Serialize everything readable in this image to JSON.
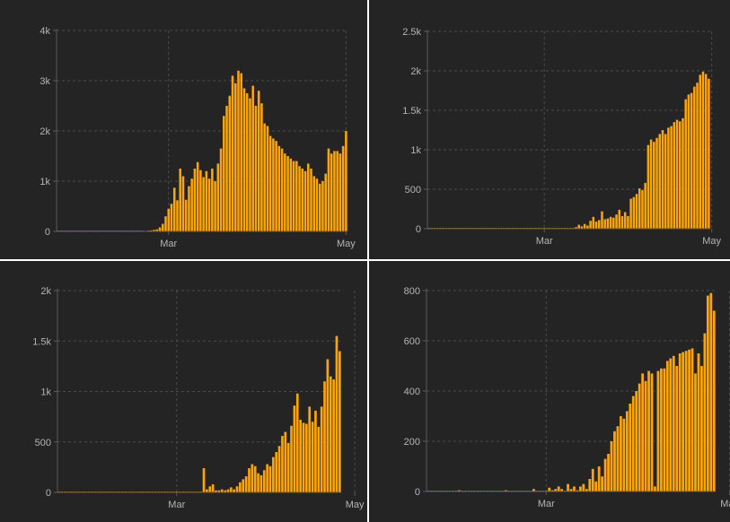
{
  "colors": {
    "bar": "#ffa500",
    "background": "#242424",
    "grid": "#4a4a4a",
    "tick": "#b4b4b4"
  },
  "chart_data": [
    {
      "type": "bar",
      "grid": true,
      "ylim": [
        0,
        4000
      ],
      "y_ticks": [
        {
          "v": 0,
          "label": "0"
        },
        {
          "v": 1000,
          "label": "1k"
        },
        {
          "v": 2000,
          "label": "2k"
        },
        {
          "v": 3000,
          "label": "3k"
        },
        {
          "v": 4000,
          "label": "4k"
        }
      ],
      "x_ticks": [
        {
          "i": 38,
          "label": "Mar"
        },
        {
          "i": 99,
          "label": "May"
        }
      ],
      "values": [
        0,
        0,
        0,
        0,
        0,
        0,
        0,
        0,
        0,
        0,
        0,
        0,
        0,
        0,
        0,
        0,
        0,
        0,
        0,
        0,
        0,
        0,
        0,
        0,
        0,
        0,
        0,
        0,
        0,
        0,
        10,
        15,
        20,
        30,
        40,
        80,
        150,
        300,
        450,
        550,
        870,
        620,
        1250,
        1100,
        630,
        900,
        1050,
        1250,
        1380,
        1220,
        1080,
        1200,
        1050,
        1250,
        1000,
        1350,
        1650,
        2300,
        2500,
        2700,
        3100,
        2950,
        3200,
        3150,
        2850,
        2750,
        2650,
        2900,
        2500,
        2800,
        2550,
        2150,
        2100,
        1900,
        1850,
        1800,
        1700,
        1650,
        1550,
        1500,
        1450,
        1400,
        1400,
        1300,
        1250,
        1200,
        1350,
        1250,
        1100,
        1050,
        950,
        1000,
        1150,
        1650,
        1550,
        1600,
        1600,
        1550,
        1700,
        2000
      ]
    },
    {
      "type": "bar",
      "grid": true,
      "ylim": [
        0,
        2500
      ],
      "y_ticks": [
        {
          "v": 0,
          "label": "0"
        },
        {
          "v": 500,
          "label": "500"
        },
        {
          "v": 1000,
          "label": "1k"
        },
        {
          "v": 1500,
          "label": "1.5k"
        },
        {
          "v": 2000,
          "label": "2k"
        },
        {
          "v": 2500,
          "label": "2.5k"
        }
      ],
      "x_ticks": [
        {
          "i": 40,
          "label": "Mar"
        },
        {
          "i": 98,
          "label": "May"
        }
      ],
      "values": [
        0,
        0,
        0,
        0,
        0,
        0,
        0,
        0,
        0,
        0,
        0,
        0,
        0,
        0,
        0,
        0,
        0,
        0,
        0,
        0,
        0,
        0,
        0,
        0,
        0,
        0,
        0,
        0,
        0,
        0,
        0,
        0,
        0,
        0,
        0,
        0,
        0,
        0,
        0,
        0,
        0,
        0,
        0,
        0,
        0,
        0,
        0,
        0,
        0,
        0,
        0,
        20,
        50,
        30,
        60,
        40,
        100,
        150,
        90,
        110,
        220,
        120,
        130,
        150,
        140,
        180,
        240,
        160,
        210,
        160,
        380,
        400,
        440,
        510,
        490,
        580,
        1060,
        1130,
        1100,
        1150,
        1200,
        1250,
        1200,
        1280,
        1300,
        1350,
        1380,
        1360,
        1400,
        1640,
        1700,
        1720,
        1800,
        1850,
        1950,
        1990,
        1960,
        1900
      ]
    },
    {
      "type": "bar",
      "grid": true,
      "ylim": [
        0,
        2000
      ],
      "y_ticks": [
        {
          "v": 0,
          "label": "0"
        },
        {
          "v": 500,
          "label": "500"
        },
        {
          "v": 1000,
          "label": "1k"
        },
        {
          "v": 1500,
          "label": "1.5k"
        },
        {
          "v": 2000,
          "label": "2k"
        }
      ],
      "x_ticks": [
        {
          "i": 39,
          "label": "Mar"
        },
        {
          "i": 98,
          "label": "May"
        }
      ],
      "values": [
        0,
        0,
        0,
        0,
        0,
        0,
        0,
        0,
        0,
        0,
        0,
        0,
        0,
        0,
        0,
        0,
        0,
        0,
        0,
        0,
        0,
        0,
        0,
        0,
        0,
        0,
        0,
        0,
        0,
        0,
        0,
        0,
        0,
        0,
        0,
        0,
        0,
        0,
        0,
        0,
        0,
        0,
        0,
        0,
        0,
        0,
        0,
        0,
        240,
        30,
        60,
        80,
        20,
        20,
        30,
        20,
        30,
        50,
        30,
        60,
        100,
        130,
        160,
        240,
        280,
        260,
        190,
        170,
        220,
        280,
        260,
        350,
        400,
        460,
        560,
        600,
        490,
        660,
        860,
        980,
        720,
        690,
        680,
        850,
        700,
        810,
        650,
        850,
        1100,
        1320,
        1150,
        1120,
        1550,
        1400
      ]
    },
    {
      "type": "bar",
      "grid": true,
      "ylim": [
        0,
        800
      ],
      "y_ticks": [
        {
          "v": 0,
          "label": "0"
        },
        {
          "v": 200,
          "label": "200"
        },
        {
          "v": 400,
          "label": "400"
        },
        {
          "v": 600,
          "label": "600"
        },
        {
          "v": 800,
          "label": "800"
        }
      ],
      "x_ticks": [
        {
          "i": 38,
          "label": "Mar"
        },
        {
          "i": 97,
          "label": "May"
        }
      ],
      "values": [
        0,
        0,
        0,
        0,
        0,
        0,
        0,
        0,
        0,
        0,
        5,
        0,
        0,
        0,
        0,
        0,
        0,
        0,
        0,
        0,
        0,
        0,
        0,
        0,
        0,
        5,
        0,
        0,
        0,
        0,
        0,
        0,
        0,
        0,
        10,
        0,
        0,
        0,
        0,
        15,
        5,
        10,
        20,
        10,
        0,
        30,
        10,
        20,
        5,
        20,
        30,
        10,
        50,
        90,
        40,
        100,
        60,
        130,
        150,
        200,
        240,
        260,
        300,
        290,
        320,
        350,
        380,
        400,
        430,
        470,
        440,
        480,
        470,
        20,
        480,
        490,
        490,
        520,
        530,
        540,
        500,
        550,
        555,
        560,
        565,
        570,
        470,
        550,
        500,
        630,
        780,
        790,
        720
      ]
    }
  ]
}
